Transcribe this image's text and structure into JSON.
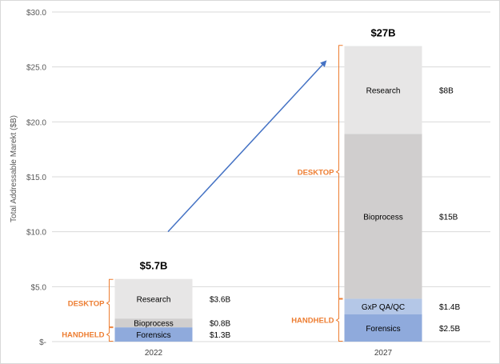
{
  "chart_data": {
    "type": "bar",
    "stacked": true,
    "title": "",
    "xlabel": "",
    "ylabel": "Total Addressable Marekt ($B)",
    "ylim": [
      0,
      30
    ],
    "yticks": [
      {
        "value": 0,
        "label": "$-"
      },
      {
        "value": 5,
        "label": "$5.0"
      },
      {
        "value": 10,
        "label": "$10.0"
      },
      {
        "value": 15,
        "label": "$15.0"
      },
      {
        "value": 20,
        "label": "$20.0"
      },
      {
        "value": 25,
        "label": "$25.0"
      },
      {
        "value": 30,
        "label": "$30.0"
      }
    ],
    "grid": true,
    "categories": [
      "2022",
      "2027"
    ],
    "bars": [
      {
        "category": "2022",
        "total_label": "$5.7B",
        "segments": [
          {
            "name": "Forensics",
            "value": 1.3,
            "value_label": "$1.3B",
            "color": "#8faadc"
          },
          {
            "name": "Bioprocess",
            "value": 0.8,
            "value_label": "$0.8B",
            "color": "#d0cece"
          },
          {
            "name": "Research",
            "value": 3.6,
            "value_label": "$3.6B",
            "color": "#e7e6e6"
          }
        ],
        "groups": [
          {
            "label": "HANDHELD",
            "from": 0,
            "to": 1.3
          },
          {
            "label": "DESKTOP",
            "from": 1.3,
            "to": 5.7
          }
        ]
      },
      {
        "category": "2027",
        "total_label": "$27B",
        "segments": [
          {
            "name": "Forensics",
            "value": 2.5,
            "value_label": "$2.5B",
            "color": "#8faadc"
          },
          {
            "name": "GxP QA/QC",
            "value": 1.4,
            "value_label": "$1.4B",
            "color": "#b4c7e7"
          },
          {
            "name": "Bioprocess",
            "value": 15,
            "value_label": "$15B",
            "color": "#d0cece"
          },
          {
            "name": "Research",
            "value": 8,
            "value_label": "$8B",
            "color": "#e7e6e6"
          }
        ],
        "groups": [
          {
            "label": "HANDHELD",
            "from": 0,
            "to": 3.9
          },
          {
            "label": "DESKTOP",
            "from": 3.9,
            "to": 27
          }
        ]
      }
    ],
    "arrow": {
      "from": {
        "category": "2022",
        "value": 10
      },
      "to": {
        "category": "2027",
        "value": 25.5
      }
    },
    "colors": {
      "group_label": "#ed7d31",
      "arrow": "#4472c4",
      "grid": "#d9d9d9",
      "text": "#000000"
    }
  }
}
